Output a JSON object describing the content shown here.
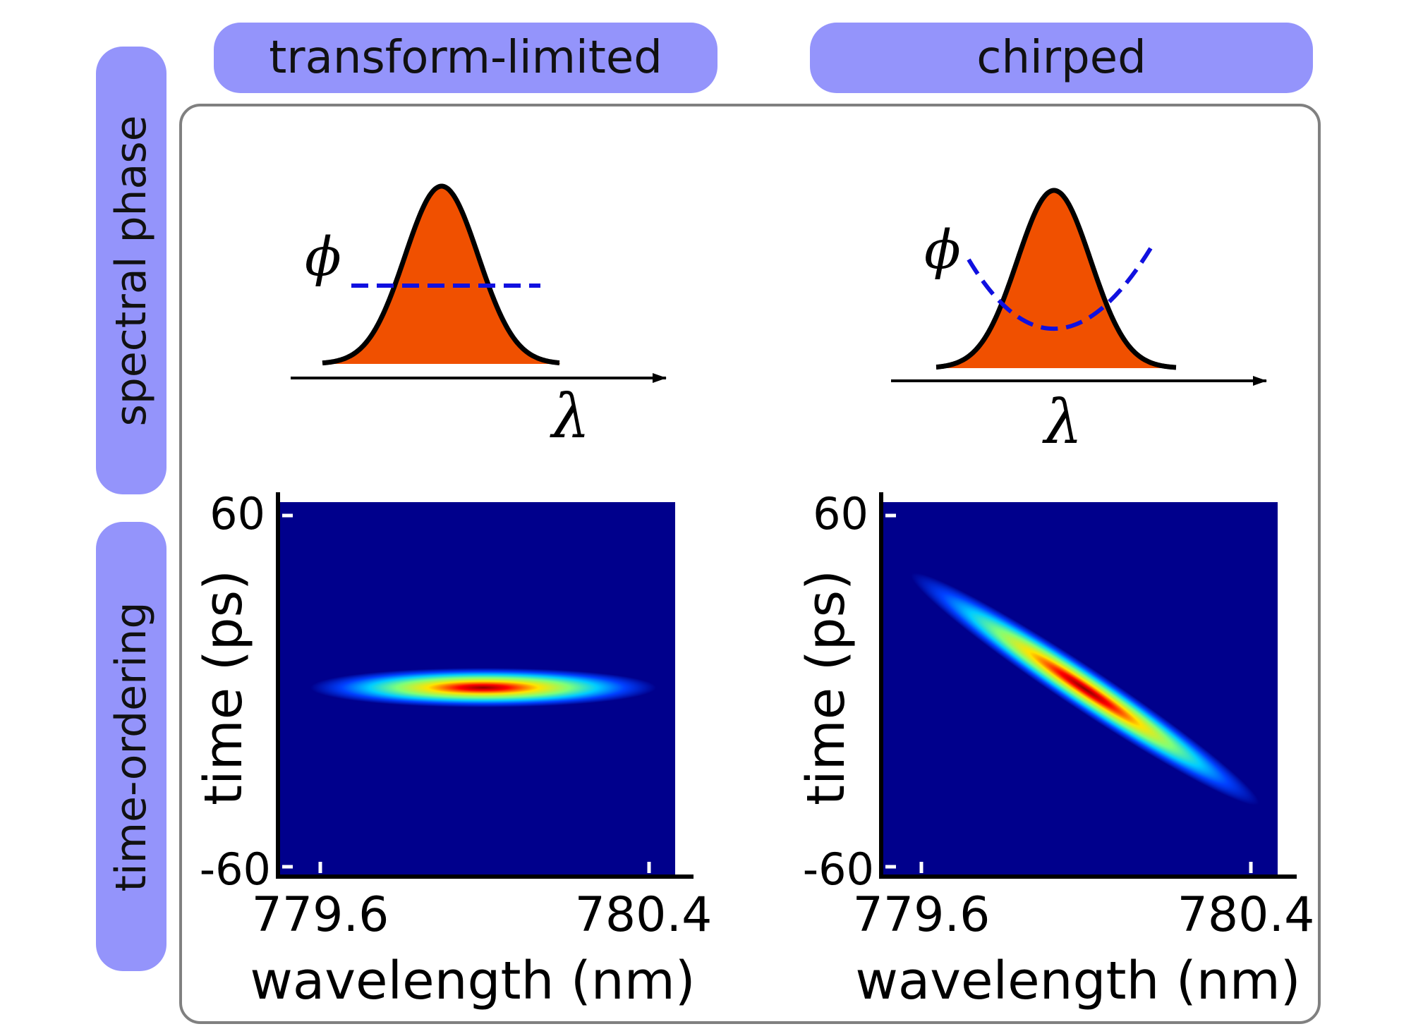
{
  "columns": [
    {
      "label": "transform-limited"
    },
    {
      "label": "chirped"
    }
  ],
  "rows": [
    {
      "label": "spectral phase"
    },
    {
      "label": "time-ordering"
    }
  ],
  "spectral": {
    "phi_symbol": "ϕ",
    "lambda_symbol": "λ"
  },
  "colors": {
    "pill": "#9494fb",
    "spectrum_fill": "#f05000",
    "phase_curve": "#1010e0",
    "plot_bg": "#00008c",
    "frame": "#808080"
  },
  "chart_data": [
    {
      "type": "heatmap",
      "panel": "transform-limited",
      "xlabel": "wavelength (nm)",
      "ylabel": "time (ps)",
      "xticks": [
        "779.6",
        "780.4"
      ],
      "yticks": [
        "60",
        "-60"
      ],
      "xlim": [
        779.5,
        780.45
      ],
      "ylim": [
        -60,
        60
      ],
      "peak": {
        "wavelength_nm": 779.99,
        "time_ps": 0
      },
      "shape": "horizontal ellipse, no time-wavelength correlation"
    },
    {
      "type": "heatmap",
      "panel": "chirped",
      "xlabel": "wavelength (nm)",
      "ylabel": "time (ps)",
      "xticks": [
        "779.6",
        "780.4"
      ],
      "yticks": [
        "60",
        "-60"
      ],
      "xlim": [
        779.5,
        780.45
      ],
      "ylim": [
        -60,
        60
      ],
      "peak": {
        "wavelength_nm": 779.99,
        "time_ps": 0
      },
      "shape": "tilted ellipse, time decreases as wavelength increases"
    }
  ]
}
